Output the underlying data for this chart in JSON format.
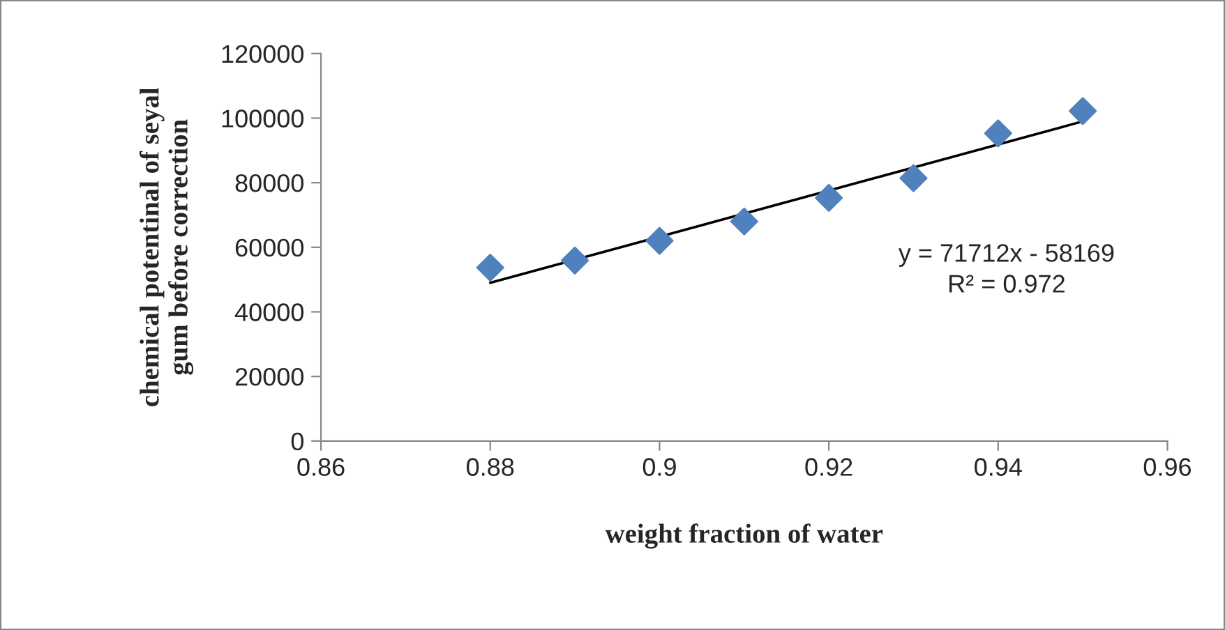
{
  "chart_data": {
    "type": "scatter",
    "xlabel": "weight fraction of water",
    "ylabel": "chemical potentinal of seyal\ngum before correction",
    "x": [
      0.88,
      0.89,
      0.9,
      0.91,
      0.92,
      0.93,
      0.94,
      0.95
    ],
    "series": [
      {
        "color": "#4f81bd",
        "marker": "diamond",
        "values": [
          53700,
          55900,
          62000,
          68000,
          75300,
          81400,
          95300,
          102200
        ]
      },
      {
        "type": "line",
        "color": "#000000",
        "x": [
          0.88,
          0.95
        ],
        "values": [
          49000,
          99000
        ],
        "line_style": "solid"
      }
    ],
    "xlim": [
      0.86,
      0.96
    ],
    "xticks": [
      {
        "value": 0.86,
        "label": "0.86"
      },
      {
        "value": 0.88,
        "label": "0.88"
      },
      {
        "value": 0.9,
        "label": "0.9"
      },
      {
        "value": 0.92,
        "label": "0.92"
      },
      {
        "value": 0.94,
        "label": "0.94"
      },
      {
        "value": 0.96,
        "label": "0.96"
      }
    ],
    "ylim": [
      0,
      120000
    ],
    "yticks": [
      0,
      20000,
      40000,
      60000,
      80000,
      100000,
      120000
    ],
    "annotations": [
      "y = 71712x - 58169",
      "R² = 0.972"
    ],
    "grid": false,
    "legend": false
  }
}
